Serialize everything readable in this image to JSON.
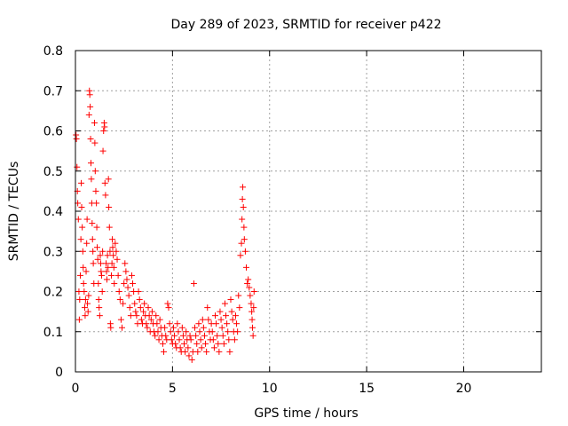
{
  "chart_data": {
    "type": "scatter",
    "title": "Day 289 of 2023, SRMTID for receiver p422",
    "xlabel": "GPS time / hours",
    "ylabel": "SRMTID / TECUs",
    "xlim": [
      0,
      24
    ],
    "ylim": [
      0,
      0.8
    ],
    "x_ticks": [
      0,
      5,
      10,
      15,
      20
    ],
    "y_ticks": [
      0,
      0.1,
      0.2,
      0.3,
      0.4,
      0.5,
      0.6,
      0.7,
      0.8
    ],
    "grid": true,
    "marker": "+",
    "color": "#ff0000",
    "series": [
      {
        "points": [
          [
            0.03,
            0.59
          ],
          [
            0.05,
            0.58
          ],
          [
            0.08,
            0.51
          ],
          [
            0.1,
            0.45
          ],
          [
            0.12,
            0.42
          ],
          [
            0.15,
            0.38
          ],
          [
            0.18,
            0.2
          ],
          [
            0.2,
            0.13
          ],
          [
            0.22,
            0.18
          ],
          [
            0.25,
            0.24
          ],
          [
            0.28,
            0.33
          ],
          [
            0.3,
            0.47
          ],
          [
            0.32,
            0.41
          ],
          [
            0.35,
            0.36
          ],
          [
            0.38,
            0.3
          ],
          [
            0.4,
            0.26
          ],
          [
            0.42,
            0.22
          ],
          [
            0.45,
            0.2
          ],
          [
            0.48,
            0.16
          ],
          [
            0.5,
            0.14
          ],
          [
            0.52,
            0.18
          ],
          [
            0.55,
            0.25
          ],
          [
            0.58,
            0.32
          ],
          [
            0.6,
            0.38
          ],
          [
            0.62,
            0.17
          ],
          [
            0.65,
            0.15
          ],
          [
            0.68,
            0.19
          ],
          [
            0.7,
            0.64
          ],
          [
            0.72,
            0.7
          ],
          [
            0.74,
            0.69
          ],
          [
            0.76,
            0.66
          ],
          [
            0.78,
            0.58
          ],
          [
            0.8,
            0.52
          ],
          [
            0.82,
            0.48
          ],
          [
            0.84,
            0.42
          ],
          [
            0.86,
            0.37
          ],
          [
            0.88,
            0.33
          ],
          [
            0.9,
            0.3
          ],
          [
            0.92,
            0.27
          ],
          [
            0.95,
            0.22
          ],
          [
            0.98,
            0.62
          ],
          [
            1.0,
            0.57
          ],
          [
            1.02,
            0.5
          ],
          [
            1.05,
            0.45
          ],
          [
            1.08,
            0.42
          ],
          [
            1.1,
            0.36
          ],
          [
            1.12,
            0.31
          ],
          [
            1.15,
            0.28
          ],
          [
            1.18,
            0.22
          ],
          [
            1.2,
            0.18
          ],
          [
            1.22,
            0.16
          ],
          [
            1.25,
            0.14
          ],
          [
            1.28,
            0.29
          ],
          [
            1.3,
            0.27
          ],
          [
            1.32,
            0.25
          ],
          [
            1.35,
            0.24
          ],
          [
            1.38,
            0.2
          ],
          [
            1.4,
            0.3
          ],
          [
            1.42,
            0.55
          ],
          [
            1.45,
            0.6
          ],
          [
            1.48,
            0.62
          ],
          [
            1.5,
            0.61
          ],
          [
            1.52,
            0.47
          ],
          [
            1.55,
            0.44
          ],
          [
            1.58,
            0.27
          ],
          [
            1.6,
            0.25
          ],
          [
            1.62,
            0.23
          ],
          [
            1.65,
            0.29
          ],
          [
            1.68,
            0.26
          ],
          [
            1.7,
            0.48
          ],
          [
            1.72,
            0.41
          ],
          [
            1.75,
            0.36
          ],
          [
            1.78,
            0.3
          ],
          [
            1.8,
            0.12
          ],
          [
            1.82,
            0.11
          ],
          [
            1.85,
            0.24
          ],
          [
            1.88,
            0.27
          ],
          [
            1.9,
            0.33
          ],
          [
            1.92,
            0.31
          ],
          [
            1.95,
            0.29
          ],
          [
            1.98,
            0.26
          ],
          [
            2.0,
            0.22
          ],
          [
            2.05,
            0.32
          ],
          [
            2.1,
            0.3
          ],
          [
            2.15,
            0.28
          ],
          [
            2.2,
            0.24
          ],
          [
            2.25,
            0.2
          ],
          [
            2.3,
            0.18
          ],
          [
            2.35,
            0.13
          ],
          [
            2.4,
            0.11
          ],
          [
            2.45,
            0.17
          ],
          [
            2.5,
            0.22
          ],
          [
            2.55,
            0.27
          ],
          [
            2.6,
            0.25
          ],
          [
            2.65,
            0.23
          ],
          [
            2.7,
            0.21
          ],
          [
            2.75,
            0.19
          ],
          [
            2.8,
            0.16
          ],
          [
            2.85,
            0.14
          ],
          [
            2.9,
            0.24
          ],
          [
            2.95,
            0.22
          ],
          [
            3.0,
            0.2
          ],
          [
            3.05,
            0.17
          ],
          [
            3.1,
            0.15
          ],
          [
            3.15,
            0.14
          ],
          [
            3.2,
            0.12
          ],
          [
            3.25,
            0.2
          ],
          [
            3.3,
            0.18
          ],
          [
            3.35,
            0.16
          ],
          [
            3.4,
            0.13
          ],
          [
            3.45,
            0.12
          ],
          [
            3.5,
            0.15
          ],
          [
            3.55,
            0.17
          ],
          [
            3.6,
            0.14
          ],
          [
            3.65,
            0.12
          ],
          [
            3.7,
            0.11
          ],
          [
            3.75,
            0.16
          ],
          [
            3.8,
            0.14
          ],
          [
            3.85,
            0.1
          ],
          [
            3.9,
            0.13
          ],
          [
            3.95,
            0.15
          ],
          [
            4.0,
            0.12
          ],
          [
            4.05,
            0.1
          ],
          [
            4.1,
            0.09
          ],
          [
            4.15,
            0.14
          ],
          [
            4.2,
            0.12
          ],
          [
            4.25,
            0.1
          ],
          [
            4.3,
            0.08
          ],
          [
            4.35,
            0.13
          ],
          [
            4.4,
            0.11
          ],
          [
            4.45,
            0.09
          ],
          [
            4.5,
            0.07
          ],
          [
            4.55,
            0.05
          ],
          [
            4.6,
            0.11
          ],
          [
            4.65,
            0.09
          ],
          [
            4.7,
            0.08
          ],
          [
            4.75,
            0.17
          ],
          [
            4.8,
            0.16
          ],
          [
            4.85,
            0.12
          ],
          [
            4.9,
            0.1
          ],
          [
            4.95,
            0.08
          ],
          [
            5.0,
            0.07
          ],
          [
            5.05,
            0.11
          ],
          [
            5.1,
            0.09
          ],
          [
            5.15,
            0.07
          ],
          [
            5.2,
            0.06
          ],
          [
            5.25,
            0.12
          ],
          [
            5.3,
            0.1
          ],
          [
            5.35,
            0.08
          ],
          [
            5.4,
            0.06
          ],
          [
            5.45,
            0.05
          ],
          [
            5.5,
            0.11
          ],
          [
            5.55,
            0.09
          ],
          [
            5.6,
            0.07
          ],
          [
            5.65,
            0.05
          ],
          [
            5.7,
            0.1
          ],
          [
            5.75,
            0.08
          ],
          [
            5.8,
            0.06
          ],
          [
            5.85,
            0.04
          ],
          [
            5.9,
            0.09
          ],
          [
            5.95,
            0.08
          ],
          [
            6.0,
            0.03
          ],
          [
            6.05,
            0.05
          ],
          [
            6.1,
            0.22
          ],
          [
            6.15,
            0.11
          ],
          [
            6.2,
            0.09
          ],
          [
            6.25,
            0.07
          ],
          [
            6.3,
            0.05
          ],
          [
            6.35,
            0.12
          ],
          [
            6.4,
            0.1
          ],
          [
            6.45,
            0.08
          ],
          [
            6.5,
            0.06
          ],
          [
            6.55,
            0.13
          ],
          [
            6.6,
            0.11
          ],
          [
            6.65,
            0.09
          ],
          [
            6.7,
            0.07
          ],
          [
            6.75,
            0.05
          ],
          [
            6.8,
            0.16
          ],
          [
            6.85,
            0.13
          ],
          [
            6.9,
            0.1
          ],
          [
            6.95,
            0.08
          ],
          [
            7.0,
            0.12
          ],
          [
            7.05,
            0.1
          ],
          [
            7.1,
            0.08
          ],
          [
            7.15,
            0.06
          ],
          [
            7.2,
            0.14
          ],
          [
            7.25,
            0.12
          ],
          [
            7.3,
            0.09
          ],
          [
            7.35,
            0.07
          ],
          [
            7.4,
            0.05
          ],
          [
            7.45,
            0.15
          ],
          [
            7.5,
            0.13
          ],
          [
            7.55,
            0.11
          ],
          [
            7.6,
            0.09
          ],
          [
            7.65,
            0.07
          ],
          [
            7.7,
            0.17
          ],
          [
            7.75,
            0.14
          ],
          [
            7.8,
            0.12
          ],
          [
            7.85,
            0.1
          ],
          [
            7.9,
            0.08
          ],
          [
            7.95,
            0.05
          ],
          [
            8.0,
            0.18
          ],
          [
            8.05,
            0.15
          ],
          [
            8.1,
            0.13
          ],
          [
            8.15,
            0.1
          ],
          [
            8.2,
            0.08
          ],
          [
            8.25,
            0.14
          ],
          [
            8.3,
            0.12
          ],
          [
            8.35,
            0.1
          ],
          [
            8.4,
            0.19
          ],
          [
            8.45,
            0.16
          ],
          [
            8.5,
            0.29
          ],
          [
            8.55,
            0.32
          ],
          [
            8.58,
            0.38
          ],
          [
            8.6,
            0.43
          ],
          [
            8.62,
            0.46
          ],
          [
            8.65,
            0.41
          ],
          [
            8.68,
            0.36
          ],
          [
            8.7,
            0.33
          ],
          [
            8.75,
            0.3
          ],
          [
            8.8,
            0.26
          ],
          [
            8.85,
            0.22
          ],
          [
            8.9,
            0.23
          ],
          [
            8.95,
            0.21
          ],
          [
            9.0,
            0.19
          ],
          [
            9.05,
            0.17
          ],
          [
            9.08,
            0.15
          ],
          [
            9.1,
            0.13
          ],
          [
            9.12,
            0.11
          ],
          [
            9.15,
            0.09
          ],
          [
            9.18,
            0.16
          ],
          [
            9.2,
            0.2
          ]
        ]
      }
    ]
  }
}
